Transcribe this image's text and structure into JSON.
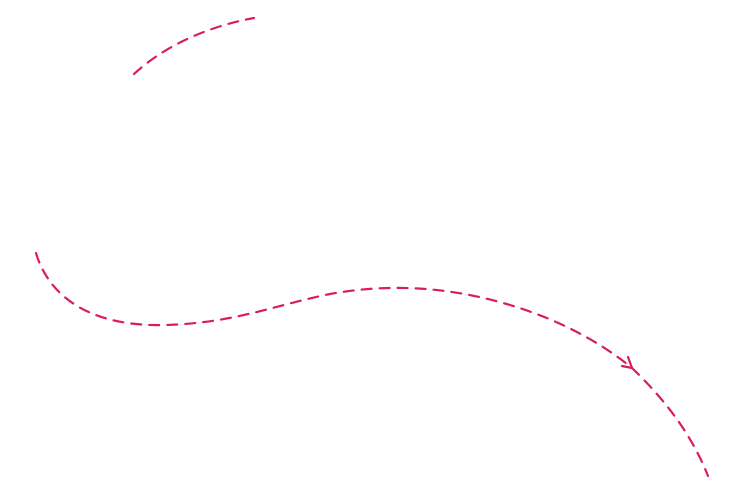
{
  "colors": {
    "background": "#ffffff",
    "stroke": "#d81e5b"
  },
  "icons": {
    "arrowhead": "arrowhead-icon"
  }
}
